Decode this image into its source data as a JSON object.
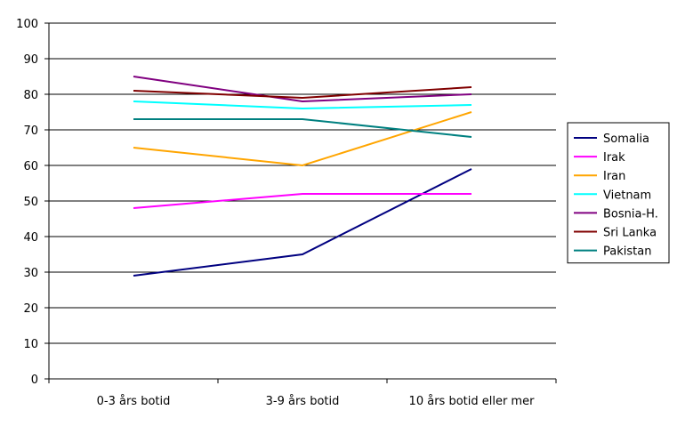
{
  "chart_data": {
    "type": "line",
    "categories": [
      "0-3 års botid",
      "3-9 års botid",
      "10 års botid eller mer"
    ],
    "ylim": [
      0,
      100
    ],
    "yticks": [
      0,
      10,
      20,
      30,
      40,
      50,
      60,
      70,
      80,
      90,
      100
    ],
    "grid": true,
    "legend_position": "right",
    "series": [
      {
        "name": "Somalia",
        "color": "#000080",
        "values": [
          29,
          35,
          59
        ]
      },
      {
        "name": "Irak",
        "color": "#FF00FF",
        "values": [
          48,
          52,
          52
        ]
      },
      {
        "name": "Iran",
        "color": "#FFA500",
        "values": [
          65,
          60,
          75
        ]
      },
      {
        "name": "Vietnam",
        "color": "#00FFFF",
        "values": [
          78,
          76,
          77
        ]
      },
      {
        "name": "Bosnia-H.",
        "color": "#800080",
        "values": [
          85,
          78,
          80
        ]
      },
      {
        "name": "Sri Lanka",
        "color": "#800000",
        "values": [
          81,
          79,
          82
        ]
      },
      {
        "name": "Pakistan",
        "color": "#008080",
        "values": [
          73,
          73,
          68
        ]
      }
    ]
  }
}
